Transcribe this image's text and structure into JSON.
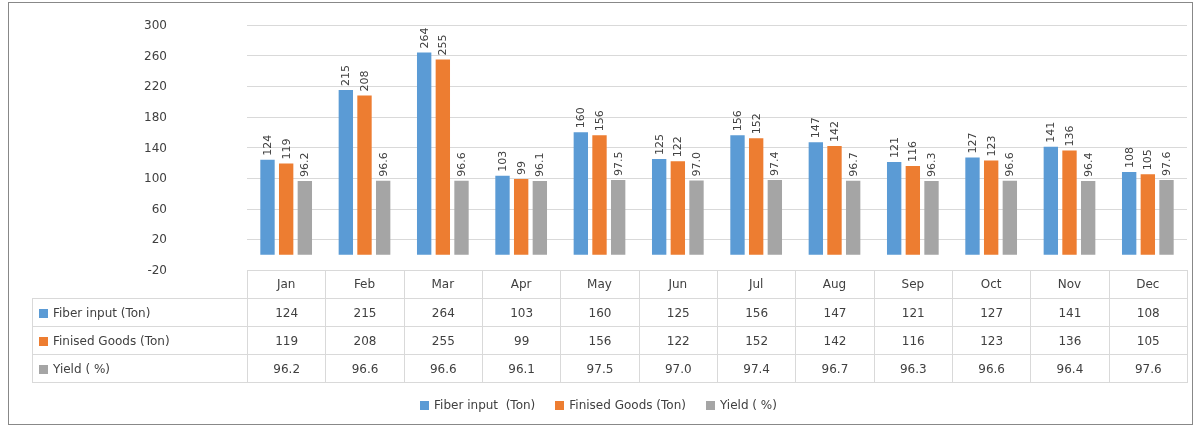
{
  "chart_data": {
    "type": "bar",
    "categories": [
      "Jan",
      "Feb",
      "Mar",
      "Apr",
      "May",
      "Jun",
      "Jul",
      "Aug",
      "Sep",
      "Oct",
      "Nov",
      "Dec"
    ],
    "series": [
      {
        "name": "Fiber input  (Ton)",
        "color": "#5b9bd5",
        "values": [
          124,
          215,
          264,
          103,
          160,
          125,
          156,
          147,
          121,
          127,
          141,
          108
        ],
        "value_labels": [
          "124",
          "215",
          "264",
          "103",
          "160",
          "125",
          "156",
          "147",
          "121",
          "127",
          "141",
          "108"
        ]
      },
      {
        "name": "Finised Goods (Ton)",
        "color": "#ed7d31",
        "values": [
          119,
          208,
          255,
          99,
          156,
          122,
          152,
          142,
          116,
          123,
          136,
          105
        ],
        "value_labels": [
          "119",
          "208",
          "255",
          "99",
          "156",
          "122",
          "152",
          "142",
          "116",
          "123",
          "136",
          "105"
        ]
      },
      {
        "name": "Yield ( %)",
        "color": "#a5a5a5",
        "values": [
          96.2,
          96.6,
          96.6,
          96.1,
          97.5,
          97.0,
          97.4,
          96.7,
          96.3,
          96.6,
          96.4,
          97.6
        ],
        "value_labels": [
          "96.2",
          "96.6",
          "96.6",
          "96.1",
          "97.5",
          "97.0",
          "97.4",
          "96.7",
          "96.3",
          "96.6",
          "96.4",
          "97.6"
        ]
      }
    ],
    "ylim": [
      -20,
      300
    ],
    "yticks": [
      -20,
      20,
      60,
      100,
      140,
      180,
      220,
      260,
      300
    ],
    "grid": "y",
    "legend": "bottom",
    "data_labels": true
  }
}
